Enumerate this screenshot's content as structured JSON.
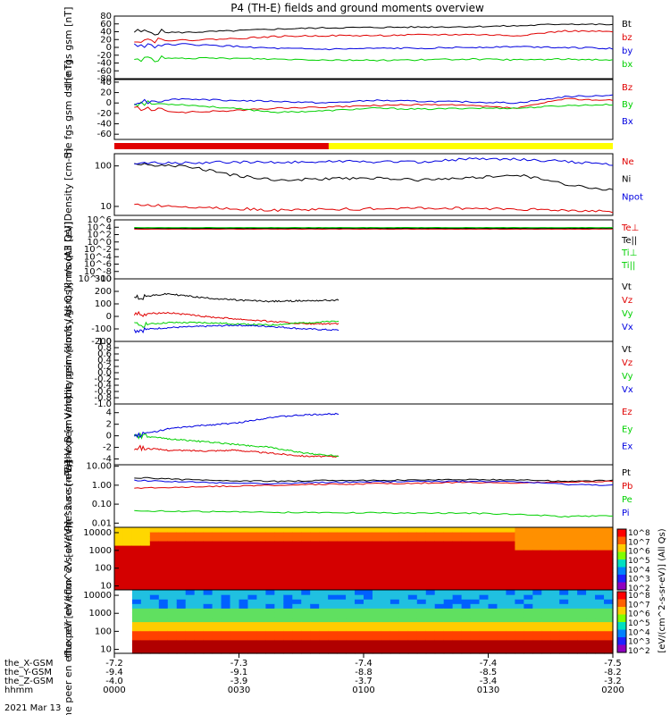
{
  "title": "P4 (TH-E) fields and ground moments overview",
  "colors": {
    "black": "#000000",
    "red": "#e00000",
    "green": "#00d000",
    "blue": "#0000e0",
    "yellow": "#ffff00",
    "slow_red": "#e00000"
  },
  "footer": {
    "rows": [
      {
        "label": "the_X-GSM",
        "values": [
          "-7.2",
          "-7.3",
          "-7.4",
          "-7.4",
          "-7.5"
        ]
      },
      {
        "label": "the_Y-GSM",
        "values": [
          "-9.4",
          "-9.1",
          "-8.8",
          "-8.5",
          "-8.2"
        ]
      },
      {
        "label": "the_Z-GSM",
        "values": [
          "-4.0",
          "-3.9",
          "-3.7",
          "-3.4",
          "-3.2"
        ]
      },
      {
        "label": "hhmm",
        "values": [
          "0000",
          "0030",
          "0100",
          "0130",
          "0200"
        ]
      }
    ],
    "date": "2021 Mar 13"
  },
  "colorbar": {
    "label": "[eV/(cm^2-s-sr-eV)] (All Qs)",
    "ticks": [
      "10^8",
      "10^7",
      "10^6",
      "10^5",
      "10^4",
      "10^3",
      "10^2"
    ]
  },
  "colorbar2": {
    "ticks": [
      "10^8",
      "10^7",
      "10^6",
      "10^5",
      "10^4",
      "10^3",
      "10^2"
    ]
  },
  "chart_data": [
    {
      "type": "line",
      "ylabel": "the fgs gsm [nT]",
      "yticks": [
        "80",
        "60",
        "40",
        "20",
        "0",
        "-20",
        "-40",
        "-60",
        "-80"
      ],
      "ylim": [
        -80,
        80
      ],
      "legend": [
        "Bt",
        "bz",
        "by",
        "bx"
      ],
      "series": [
        {
          "name": "Bt",
          "color": "black",
          "values": [
            40,
            38,
            42,
            47,
            50,
            51,
            52,
            53,
            55,
            60,
            58
          ]
        },
        {
          "name": "bz",
          "color": "red",
          "values": [
            20,
            18,
            22,
            28,
            30,
            30,
            32,
            33,
            30,
            42,
            40
          ]
        },
        {
          "name": "by",
          "color": "blue",
          "values": [
            5,
            8,
            3,
            -3,
            -5,
            -3,
            -2,
            0,
            2,
            0,
            -3
          ]
        },
        {
          "name": "bx",
          "color": "green",
          "values": [
            -30,
            -28,
            -28,
            -30,
            -32,
            -33,
            -32,
            -30,
            -32,
            -30,
            -32
          ]
        }
      ]
    },
    {
      "type": "line",
      "ylabel": "the fgs gsm dsl [nT]",
      "yticks": [
        "40",
        "20",
        "0",
        "-20",
        "-40",
        "-60"
      ],
      "ylim": [
        -70,
        45
      ],
      "legend": [
        "Bz",
        "By",
        "Bx"
      ],
      "series": [
        {
          "name": "Bz",
          "color": "red",
          "values": [
            -10,
            -18,
            -15,
            -10,
            -8,
            -5,
            -3,
            -5,
            -10,
            8,
            5
          ]
        },
        {
          "name": "By",
          "color": "green",
          "values": [
            0,
            -3,
            -10,
            -18,
            -15,
            -10,
            -12,
            -10,
            -10,
            -5,
            -3
          ]
        },
        {
          "name": "Bx",
          "color": "blue",
          "values": [
            2,
            8,
            5,
            3,
            0,
            5,
            3,
            2,
            0,
            12,
            15
          ]
        }
      ]
    },
    {
      "type": "bar",
      "segments": [
        {
          "from": 0.0,
          "to": 0.43,
          "color": "slow_red"
        },
        {
          "from": 0.43,
          "to": 1.0,
          "color": "yellow"
        }
      ]
    },
    {
      "type": "line",
      "ylabel": "Density [cm-3]",
      "yticks": [
        "100",
        "10"
      ],
      "ylim": [
        6,
        200
      ],
      "legend": [
        "Ne",
        "Ni",
        "Npot"
      ],
      "series": [
        {
          "name": "Ne",
          "color": "red",
          "values": [
            11,
            10,
            9,
            8,
            8.5,
            8.8,
            9,
            9,
            8.6,
            8,
            7.5
          ]
        },
        {
          "name": "Ni",
          "color": "black",
          "values": [
            110,
            100,
            60,
            45,
            48,
            50,
            45,
            50,
            60,
            35,
            25
          ]
        },
        {
          "name": "Npot",
          "color": "blue",
          "values": [
            120,
            118,
            125,
            122,
            130,
            126,
            124,
            150,
            145,
            130,
            105
          ]
        }
      ]
    },
    {
      "type": "line",
      "ylabel": "moqt3 [eV]",
      "yticks": [
        "10^6",
        "10^4",
        "10^2",
        "10^0",
        "10^-2",
        "10^-4",
        "10^-6",
        "10^-8",
        "10^-10"
      ],
      "ylim": [
        1e-10,
        1000000.0
      ],
      "legend": [
        "Te⊥",
        "Te||",
        "Ti⊥",
        "Ti||"
      ],
      "series": [
        {
          "name": "Te⊥",
          "color": "red",
          "values": [
            3000,
            3000,
            3000,
            3000,
            3000,
            3000,
            3000,
            3000,
            3000,
            3000,
            3000
          ]
        },
        {
          "name": "Te||",
          "color": "black",
          "values": [
            5000,
            5000,
            5000,
            5000,
            5000,
            5000,
            5000,
            5000,
            5000,
            5000,
            5000
          ]
        },
        {
          "name": "Ti||",
          "color": "green",
          "values": [
            8000,
            8000,
            8000,
            8000,
            8000,
            8000,
            8000,
            8000,
            8000,
            8000,
            8000
          ]
        }
      ]
    },
    {
      "type": "line",
      "ylabel": "the peir velocity gsm [km/s (All Qs)]",
      "yticks": [
        "300",
        "200",
        "100",
        "0",
        "-100",
        "-200"
      ],
      "ylim": [
        -200,
        300
      ],
      "legend": [
        "Vt",
        "Vz",
        "Vy",
        "Vx"
      ],
      "series": [
        {
          "name": "Vt",
          "color": "black",
          "values": [
            150,
            180,
            150,
            130,
            120,
            125,
            130
          ]
        },
        {
          "name": "Vz",
          "color": "red",
          "values": [
            20,
            30,
            0,
            -20,
            -40,
            -60,
            -60
          ]
        },
        {
          "name": "Vy",
          "color": "green",
          "values": [
            -70,
            -50,
            -50,
            -60,
            -70,
            -50,
            -40
          ]
        },
        {
          "name": "Vx",
          "color": "blue",
          "values": [
            -110,
            -90,
            -80,
            -70,
            -80,
            -100,
            -110
          ]
        }
      ]
    },
    {
      "type": "line",
      "ylabel": "the peer velocity gsm [km/s (All Qs)]",
      "yticks": [
        "1.0",
        "0.8",
        "0.6",
        "0.4",
        "0.2",
        "0.0",
        "-0.2",
        "-0.4",
        "-0.6",
        "-0.8",
        "-1.0"
      ],
      "ylim": [
        -1,
        1
      ],
      "legend": [
        "Vt",
        "Vz",
        "Vy",
        "Vx"
      ],
      "series": []
    },
    {
      "type": "line",
      "ylabel": "E=-VxB [mV/m]",
      "yticks": [
        "4",
        "2",
        "0",
        "-2",
        "-4"
      ],
      "ylim": [
        -5,
        5.5
      ],
      "legend": [
        "Ez",
        "Ey",
        "Ex"
      ],
      "series": [
        {
          "name": "Ez",
          "color": "red",
          "values": [
            -2,
            -2.5,
            -2.6,
            -2.5,
            -3.0,
            -3.5,
            -3.6
          ]
        },
        {
          "name": "Ey",
          "color": "green",
          "values": [
            0,
            -0.5,
            -1,
            -1.5,
            -2,
            -3,
            -3.5
          ]
        },
        {
          "name": "Ex",
          "color": "blue",
          "values": [
            0,
            1.2,
            1.8,
            2.2,
            3.2,
            3.6,
            3.8
          ]
        }
      ]
    },
    {
      "type": "line",
      "ylabel": "Pressure [nPa]",
      "yticks": [
        "10.00",
        "1.00",
        "0.10",
        "0.01"
      ],
      "ylim": [
        0.006,
        12
      ],
      "legend": [
        "Pt",
        "Pb",
        "Pe",
        "Pi"
      ],
      "series": [
        {
          "name": "Pt",
          "color": "black",
          "values": [
            2.5,
            2.0,
            1.7,
            1.6,
            1.8,
            1.8,
            1.9,
            2.0,
            1.9,
            1.6,
            1.8
          ]
        },
        {
          "name": "Pb",
          "color": "red",
          "values": [
            0.7,
            0.8,
            0.9,
            1.0,
            1.1,
            1.2,
            1.3,
            1.4,
            1.3,
            1.5,
            1.6
          ]
        },
        {
          "name": "Pe",
          "color": "green",
          "values": [
            0.045,
            0.042,
            0.04,
            0.037,
            0.036,
            0.035,
            0.034,
            0.033,
            0.03,
            0.022,
            0.025
          ]
        },
        {
          "name": "Pi",
          "color": "blue",
          "values": [
            1.8,
            1.5,
            1.3,
            1.2,
            1.4,
            1.5,
            1.6,
            1.6,
            1.5,
            1.1,
            1.0
          ]
        }
      ]
    },
    {
      "type": "heatmap",
      "ylabel": "the peir en eflux eV [eV/(cm^2-s-sr-eV)]",
      "yticks": [
        "10000",
        "1000",
        "100",
        "10"
      ],
      "ylim": [
        6,
        20000
      ]
    },
    {
      "type": "heatmap",
      "ylabel": "the peer en eflux eV [eV/(cm^2-s-sr-eV)]",
      "yticks": [
        "10000",
        "1000",
        "100",
        "10"
      ],
      "ylim": [
        6,
        20000
      ]
    }
  ]
}
